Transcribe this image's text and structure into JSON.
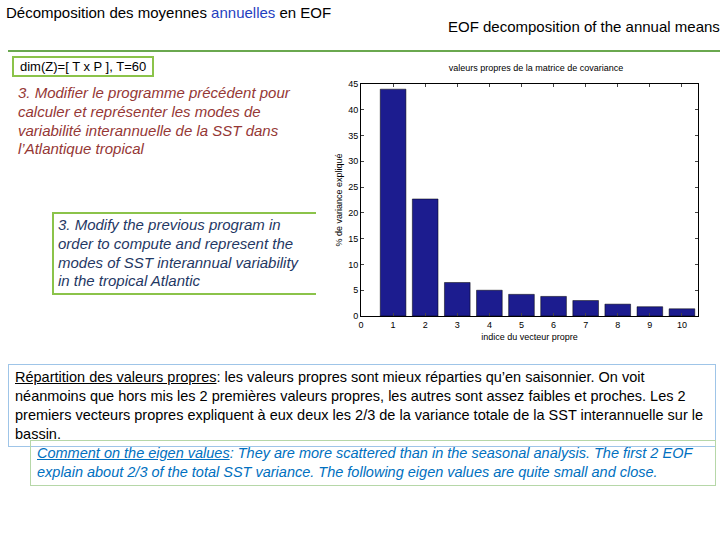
{
  "header": {
    "title_fr": {
      "before": "Décomposition des moyennes ",
      "highlight": "annuelles",
      "after": " en EOF"
    },
    "title_en": "EOF decomposition of the annual means"
  },
  "dimensions": "dim(Z)=[ T x P ], T=60",
  "question": {
    "fr": "3. Modifier le programme précédent pour calculer  et représenter les modes de variabilité interannuelle de la SST dans l’Atlantique tropical",
    "en": "3. Modify the previous program in order to compute and represent the modes of SST interannual variability in the tropical Atlantic"
  },
  "chart_data": {
    "type": "bar",
    "title": "valeurs propres de la matrice de covariance",
    "x_label": "indice du vecteur propre",
    "y_label": "% de variance expliqué",
    "x": [
      1,
      2,
      3,
      4,
      5,
      6,
      7,
      8,
      9,
      10
    ],
    "values": [
      44,
      22.7,
      6.5,
      5,
      4.2,
      3.8,
      3,
      2.3,
      1.8,
      1.4
    ],
    "color": "#1c1c8f",
    "xlim": [
      0,
      10.5
    ],
    "xticks": [
      0,
      1,
      2,
      3,
      4,
      5,
      6,
      7,
      8,
      9,
      10
    ],
    "ylim": [
      0,
      45
    ],
    "yticks": [
      0,
      5,
      10,
      15,
      20,
      25,
      30,
      35,
      40,
      45
    ],
    "grid": false
  },
  "comment": {
    "fr": {
      "heading": "Répartition des valeurs propres",
      "text": ": les valeurs propres sont mieux réparties qu’en saisonnier. On voit néanmoins que hors mis les 2 premières valeurs propres, les autres sont assez faibles et proches. Les 2 premiers vecteurs propres expliquent à eux deux les 2/3 de la variance totale de la SST interannuelle sur le bassin."
    },
    "en": {
      "heading": "Comment on the eigen values",
      "text": ": They are more scattered than in the seasonal analysis. The first 2 EOF explain about 2/3 of the total SST variance. The following eigen values are quite small and close."
    }
  }
}
